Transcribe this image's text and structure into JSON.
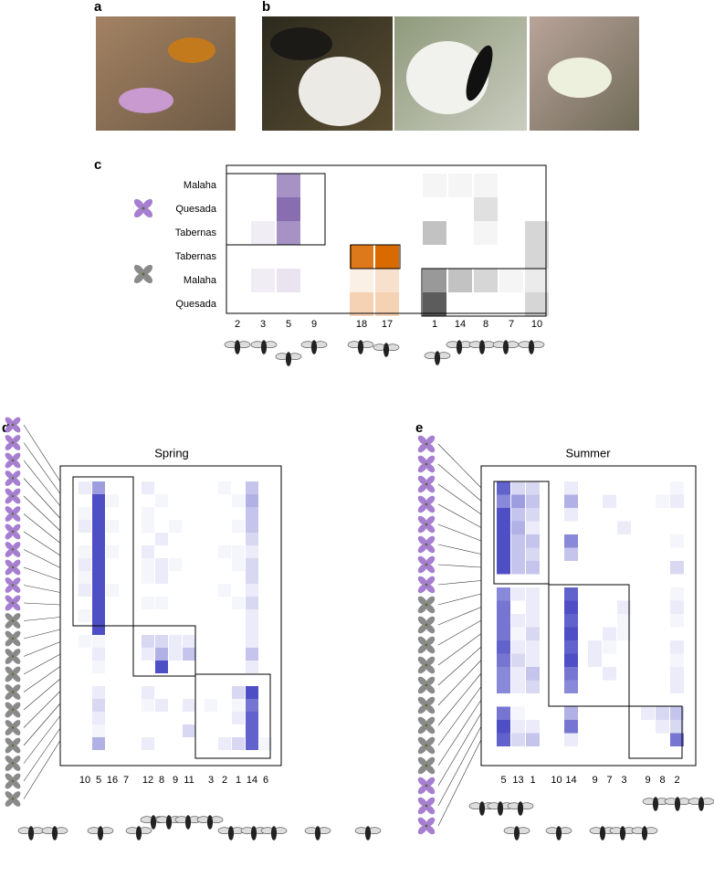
{
  "panel_labels": [
    "a",
    "b",
    "c",
    "d",
    "e"
  ],
  "chart_data": [
    {
      "type": "heatmap",
      "panel": "c",
      "rows": [
        "Malaha",
        "Quesada",
        "Tabernas",
        "Tabernas",
        "Malaha",
        "Quesada"
      ],
      "columns": [
        2,
        3,
        5,
        9,
        18,
        17,
        1,
        14,
        8,
        7,
        10
      ],
      "colors": [
        "#6a4a9c",
        "#6a4a9c",
        "#6a4a9c",
        "#6a4a9c",
        "#d96a00",
        "#d96a00",
        "#333333",
        "#333333",
        "#333333",
        "#333333",
        "#333333"
      ],
      "values": [
        [
          0,
          0,
          0.6,
          0,
          0,
          0,
          0.05,
          0.05,
          0.05,
          0,
          0
        ],
        [
          0,
          0,
          0.8,
          0,
          0,
          0,
          0,
          0,
          0.15,
          0,
          0
        ],
        [
          0,
          0.1,
          0.6,
          0,
          0,
          0,
          0.3,
          0,
          0.05,
          0,
          0.2
        ],
        [
          0,
          0,
          0,
          0,
          0.9,
          1,
          0,
          0,
          0,
          0,
          0.2
        ],
        [
          0,
          0.1,
          0.15,
          0,
          0.1,
          0.2,
          0.5,
          0.3,
          0.2,
          0.05,
          0.1
        ],
        [
          0,
          0,
          0,
          0,
          0.3,
          0.3,
          0.8,
          0,
          0,
          0,
          0.2
        ]
      ]
    },
    {
      "type": "heatmap",
      "panel": "d",
      "title": "Spring",
      "color": "#3b3bbf",
      "columns": [
        10,
        5,
        16,
        7,
        12,
        8,
        9,
        11,
        3,
        2,
        1,
        14,
        6
      ],
      "values": [
        [
          0.1,
          0.5,
          0,
          0,
          0.1,
          0,
          0,
          0,
          0,
          0.05,
          0,
          0.3,
          0
        ],
        [
          0,
          0.9,
          0.05,
          0,
          0,
          0.05,
          0,
          0,
          0,
          0,
          0.05,
          0.4,
          0
        ],
        [
          0.05,
          0.9,
          0,
          0,
          0.05,
          0,
          0,
          0,
          0,
          0,
          0,
          0.3,
          0
        ],
        [
          0.1,
          0.9,
          0.05,
          0,
          0.05,
          0,
          0.05,
          0,
          0,
          0,
          0.05,
          0.3,
          0
        ],
        [
          0,
          0.9,
          0,
          0,
          0,
          0.1,
          0,
          0,
          0,
          0,
          0,
          0.2,
          0
        ],
        [
          0.05,
          0.9,
          0.05,
          0,
          0.1,
          0,
          0,
          0,
          0,
          0.05,
          0.05,
          0.1,
          0
        ],
        [
          0.1,
          0.9,
          0,
          0,
          0.05,
          0.1,
          0.05,
          0,
          0,
          0,
          0.05,
          0.2,
          0
        ],
        [
          0.05,
          0.9,
          0,
          0,
          0.05,
          0.1,
          0,
          0,
          0,
          0,
          0,
          0.2,
          0
        ],
        [
          0.1,
          0.9,
          0.05,
          0,
          0,
          0,
          0,
          0,
          0,
          0.05,
          0,
          0.1,
          0
        ],
        [
          0,
          0.9,
          0,
          0,
          0.05,
          0.05,
          0,
          0,
          0,
          0,
          0.05,
          0.2,
          0
        ],
        [
          0.05,
          0.9,
          0,
          0,
          0,
          0,
          0,
          0,
          0,
          0,
          0,
          0.1,
          0
        ],
        [
          0,
          0.9,
          0,
          0,
          0,
          0,
          0,
          0,
          0,
          0,
          0,
          0.1,
          0
        ],
        [
          0.05,
          0.05,
          0,
          0,
          0.2,
          0.2,
          0.1,
          0.1,
          0,
          0,
          0,
          0.1,
          0
        ],
        [
          0,
          0.1,
          0,
          0,
          0.1,
          0.4,
          0.1,
          0.3,
          0,
          0,
          0,
          0.3,
          0
        ],
        [
          0,
          0.05,
          0,
          0,
          0,
          0.9,
          0,
          0,
          0,
          0,
          0,
          0.1,
          0
        ],
        [
          0,
          0,
          0,
          0,
          0,
          0,
          0,
          0,
          0,
          0,
          0,
          0,
          0
        ],
        [
          0,
          0.1,
          0,
          0,
          0.1,
          0,
          0,
          0,
          0,
          0,
          0.2,
          0.9,
          0
        ],
        [
          0,
          0.2,
          0,
          0,
          0.05,
          0.1,
          0,
          0.1,
          0.05,
          0,
          0.05,
          0.7,
          0
        ],
        [
          0,
          0.1,
          0,
          0,
          0,
          0,
          0,
          0,
          0,
          0,
          0.1,
          0.8,
          0
        ],
        [
          0,
          0.05,
          0,
          0,
          0,
          0,
          0,
          0.2,
          0,
          0,
          0,
          0.8,
          0
        ],
        [
          0,
          0.4,
          0,
          0,
          0.1,
          0,
          0,
          0,
          0,
          0.1,
          0.2,
          0.8,
          0.05
        ]
      ]
    },
    {
      "type": "heatmap",
      "panel": "e",
      "title": "Summer",
      "color": "#3b3bbf",
      "columns": [
        5,
        13,
        1,
        10,
        14,
        9,
        7,
        3,
        9,
        8,
        2
      ],
      "values": [
        [
          0.8,
          0.2,
          0.2,
          0,
          0.1,
          0,
          0,
          0,
          0,
          0,
          0.05
        ],
        [
          0.6,
          0.5,
          0.3,
          0,
          0.4,
          0,
          0.1,
          0,
          0,
          0.05,
          0.1
        ],
        [
          0.9,
          0.3,
          0.2,
          0,
          0.1,
          0,
          0,
          0,
          0,
          0,
          0
        ],
        [
          0.9,
          0.4,
          0.1,
          0,
          0,
          0,
          0,
          0.1,
          0,
          0,
          0
        ],
        [
          0.9,
          0.3,
          0.3,
          0,
          0.6,
          0,
          0,
          0,
          0,
          0,
          0.05
        ],
        [
          0.9,
          0.3,
          0.2,
          0,
          0.3,
          0,
          0,
          0,
          0,
          0,
          0
        ],
        [
          0.9,
          0.3,
          0.3,
          0,
          0,
          0,
          0,
          0,
          0,
          0,
          0.2
        ],
        [
          0,
          0,
          0,
          0,
          0,
          0,
          0,
          0,
          0,
          0,
          0
        ],
        [
          0.6,
          0.1,
          0.1,
          0,
          0.8,
          0,
          0,
          0,
          0,
          0,
          0.05
        ],
        [
          0.7,
          0,
          0.1,
          0,
          0.9,
          0,
          0,
          0.1,
          0,
          0,
          0.1
        ],
        [
          0.7,
          0.1,
          0.1,
          0,
          0.8,
          0,
          0,
          0.05,
          0,
          0,
          0.05
        ],
        [
          0.7,
          0.05,
          0.2,
          0,
          0.9,
          0,
          0.1,
          0.05,
          0,
          0,
          0
        ],
        [
          0.8,
          0.1,
          0.1,
          0,
          0.8,
          0.1,
          0.05,
          0,
          0,
          0,
          0.1
        ],
        [
          0.7,
          0.2,
          0.1,
          0,
          0.9,
          0.1,
          0,
          0,
          0,
          0,
          0.05
        ],
        [
          0.6,
          0.1,
          0.3,
          0,
          0.7,
          0,
          0.1,
          0,
          0,
          0,
          0.1
        ],
        [
          0.6,
          0.1,
          0.2,
          0,
          0.6,
          0,
          0,
          0,
          0,
          0,
          0.1
        ],
        [
          0,
          0,
          0,
          0,
          0,
          0,
          0,
          0,
          0,
          0,
          0
        ],
        [
          0.7,
          0.05,
          0,
          0,
          0.4,
          0,
          0,
          0,
          0.1,
          0.2,
          0.3
        ],
        [
          0.9,
          0.1,
          0.1,
          0,
          0.7,
          0,
          0,
          0,
          0,
          0.1,
          0.2
        ],
        [
          0.8,
          0.2,
          0.3,
          0,
          0.1,
          0,
          0,
          0,
          0,
          0,
          0.7
        ]
      ]
    }
  ]
}
